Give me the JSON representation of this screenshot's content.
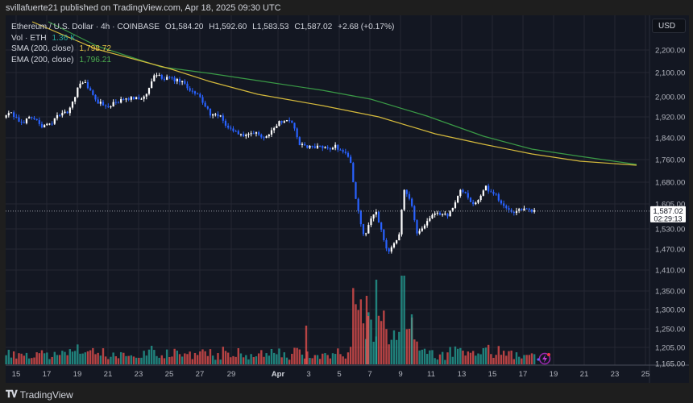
{
  "header": {
    "published_text": "svillafuerte21 published on TradingView.com, Apr 18, 2025 09:30 UTC"
  },
  "legend": {
    "symbol_line": "Ethereum / U.S. Dollar · 4h · COINBASE",
    "open": "O1,584.20",
    "high": "H1,592.60",
    "low": "L1,583.53",
    "close": "C1,587.02",
    "change": "+2.68 (+0.17%)",
    "vol_label": "Vol · ETH",
    "vol_value": "1.36 K",
    "sma_label": "SMA (200, close)",
    "sma_value": "1,798.72",
    "ema_label": "EMA (200, close)",
    "ema_value": "1,796.21"
  },
  "price_axis": {
    "currency_button": "USD",
    "last_price": "1,587.02",
    "countdown": "02:29:13",
    "ticks": [
      "2,200.00",
      "2,100.00",
      "2,000.00",
      "1,920.00",
      "1,840.00",
      "1,760.00",
      "1,680.00",
      "1,605.00",
      "1,530.00",
      "1,470.00",
      "1,410.00",
      "1,350.00",
      "1,300.00",
      "1,250.00",
      "1,205.00",
      "1,165.00"
    ]
  },
  "time_axis": {
    "ticks": [
      "15",
      "17",
      "19",
      "21",
      "23",
      "25",
      "27",
      "29",
      "Apr",
      "3",
      "5",
      "7",
      "9",
      "11",
      "13",
      "15",
      "17",
      "19",
      "21",
      "23",
      "25"
    ]
  },
  "footer": {
    "brand": "TradingView"
  },
  "colors": {
    "background": "#131722",
    "up_candle": "#ffffff",
    "down_candle": "#2962ff",
    "sma": "#d4b93c",
    "ema": "#3a9a46",
    "vol_up": "#26a69a",
    "vol_down": "#ef5350",
    "grid": "#242733"
  },
  "chart_data": {
    "type": "candlestick",
    "title": "Ethereum / U.S. Dollar · 4h · COINBASE",
    "xlabel": "",
    "ylabel": "USD",
    "y_scale": "log",
    "ylim": [
      1165,
      2290
    ],
    "x_ticks": [
      "Mar 15",
      "Mar 17",
      "Mar 19",
      "Mar 21",
      "Mar 23",
      "Mar 25",
      "Mar 27",
      "Mar 29",
      "Apr",
      "Apr 3",
      "Apr 5",
      "Apr 7",
      "Apr 9",
      "Apr 11",
      "Apr 13",
      "Apr 15",
      "Apr 17",
      "Apr 19",
      "Apr 21",
      "Apr 23",
      "Apr 25"
    ],
    "last": {
      "open": 1584.2,
      "high": 1592.6,
      "low": 1583.53,
      "close": 1587.02,
      "change": 2.68,
      "change_pct": 0.17
    },
    "price_path_keypoints": [
      {
        "date": "Mar 14",
        "price": 1905
      },
      {
        "date": "Mar 16",
        "price": 1925
      },
      {
        "date": "Mar 17",
        "price": 1890
      },
      {
        "date": "Mar 18",
        "price": 1930
      },
      {
        "date": "Mar 19",
        "price": 2040
      },
      {
        "date": "Mar 20",
        "price": 1980
      },
      {
        "date": "Mar 22",
        "price": 1975
      },
      {
        "date": "Mar 24",
        "price": 2080
      },
      {
        "date": "Mar 25",
        "price": 2070
      },
      {
        "date": "Mar 26",
        "price": 2010
      },
      {
        "date": "Mar 28",
        "price": 1900
      },
      {
        "date": "Mar 29",
        "price": 1830
      },
      {
        "date": "Mar 31",
        "price": 1810
      },
      {
        "date": "Apr 1",
        "price": 1910
      },
      {
        "date": "Apr 2",
        "price": 1800
      },
      {
        "date": "Apr 5",
        "price": 1800
      },
      {
        "date": "Apr 6",
        "price": 1580
      },
      {
        "date": "Apr 7",
        "price": 1480
      },
      {
        "date": "Apr 8",
        "price": 1560
      },
      {
        "date": "Apr 9",
        "price": 1450
      },
      {
        "date": "Apr 9.5",
        "price": 1660
      },
      {
        "date": "Apr 10",
        "price": 1520
      },
      {
        "date": "Apr 12",
        "price": 1580
      },
      {
        "date": "Apr 13",
        "price": 1640
      },
      {
        "date": "Apr 14",
        "price": 1650
      },
      {
        "date": "Apr 16",
        "price": 1575
      },
      {
        "date": "Apr 18",
        "price": 1587
      }
    ],
    "series": [
      {
        "name": "SMA (200, close)",
        "last_value": 1798.72,
        "start_value": 2290,
        "end_value": 1798.72
      },
      {
        "name": "EMA (200, close)",
        "last_value": 1796.21,
        "start_value": 2260,
        "end_value": 1796.21
      },
      {
        "name": "Vol · ETH",
        "last_value": "1.36 K"
      }
    ]
  }
}
